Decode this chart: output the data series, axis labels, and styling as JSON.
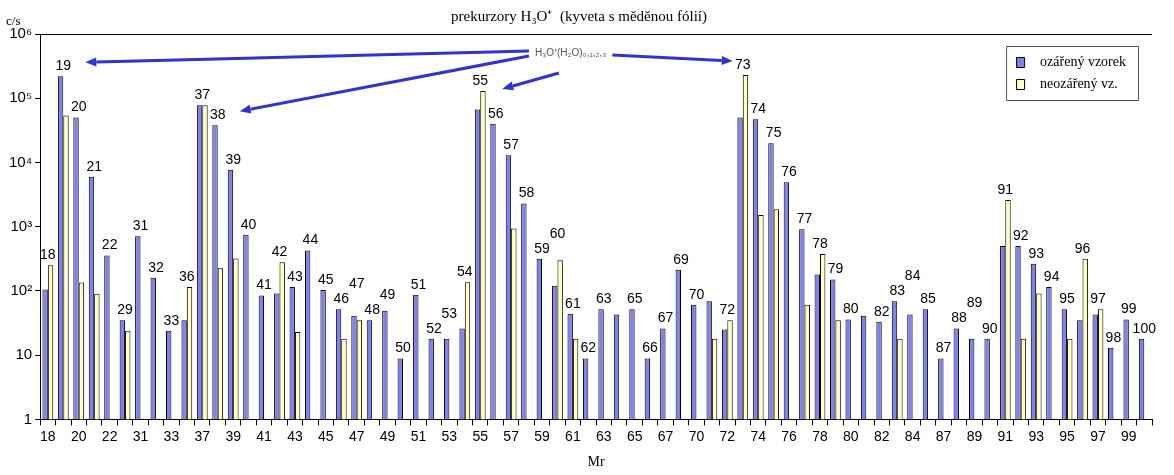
{
  "chart_data": {
    "type": "bar",
    "title": "prekurzory H₃O⁺  (kyveta s měděnou fólií)",
    "xlabel": "Mr",
    "ylabel": "c/s",
    "categories": [
      "18",
      "19",
      "20",
      "21",
      "22",
      "29",
      "31",
      "32",
      "33",
      "36",
      "37",
      "38",
      "39",
      "40",
      "41",
      "42",
      "43",
      "44",
      "45",
      "46",
      "47",
      "48",
      "49",
      "50",
      "51",
      "52",
      "53",
      "54",
      "55",
      "56",
      "57",
      "58",
      "59",
      "60",
      "61",
      "62",
      "63",
      null,
      "65",
      "66",
      "67",
      "69",
      "70",
      null,
      "72",
      "73",
      "74",
      "75",
      "76",
      "77",
      "78",
      "79",
      "80",
      null,
      "82",
      "83",
      "84",
      "85",
      "87",
      "88",
      "89",
      "90",
      "91",
      "92",
      "93",
      "94",
      "95",
      "96",
      "97",
      "98",
      "99",
      "100"
    ],
    "series": [
      {
        "name": "ozářený vzorek",
        "color": "#8080ee",
        "values": [
          105,
          220000,
          50000,
          6000,
          355,
          35,
          710,
          160,
          24,
          35,
          78000,
          38000,
          7700,
          750,
          85,
          91,
          115,
          425,
          103,
          52,
          41,
          35,
          49,
          8.9,
          87,
          18,
          18,
          26,
          67000,
          40000,
          13000,
          2300,
          316,
          120,
          44,
          8.9,
          52,
          43,
          52,
          8.9,
          26,
          214,
          61,
          69,
          25,
          50000,
          47000,
          20000,
          4900,
          910,
          180,
          150,
          36,
          41,
          33,
          69,
          43,
          52,
          8.9,
          26,
          18,
          18,
          500,
          500,
          265,
          115,
          52,
          35,
          43,
          13,
          36,
          18
        ]
      },
      {
        "name": "neozářený vz.",
        "color": "#ffffc0",
        "values": [
          250,
          54000,
          135,
          90,
          null,
          24,
          null,
          null,
          null,
          115,
          78000,
          225,
          320,
          null,
          null,
          280,
          23,
          null,
          null,
          18,
          35,
          null,
          null,
          null,
          null,
          null,
          null,
          136,
          130000,
          null,
          940,
          null,
          null,
          300,
          18,
          null,
          null,
          null,
          null,
          null,
          null,
          null,
          null,
          18,
          35,
          230000,
          1520,
          1870,
          null,
          61,
          375,
          35,
          null,
          null,
          null,
          18,
          null,
          null,
          null,
          null,
          null,
          null,
          2600,
          18,
          91,
          null,
          18,
          316,
          52,
          null,
          null,
          null
        ]
      }
    ],
    "log": "y",
    "ylim": [
      1,
      1000000
    ],
    "yticks": [
      1,
      10,
      {
        "value": 100,
        "label": "10²"
      },
      {
        "value": 1000,
        "label": "10³"
      },
      {
        "value": 10000,
        "label": "10⁴"
      },
      {
        "value": 100000,
        "label": "10⁵"
      },
      {
        "value": 1000000,
        "label": "10⁶"
      }
    ],
    "grid": false,
    "legend": "top right",
    "annotations": [
      "H₃O⁺(H₂O)₀,₁,₂,₃"
    ]
  }
}
